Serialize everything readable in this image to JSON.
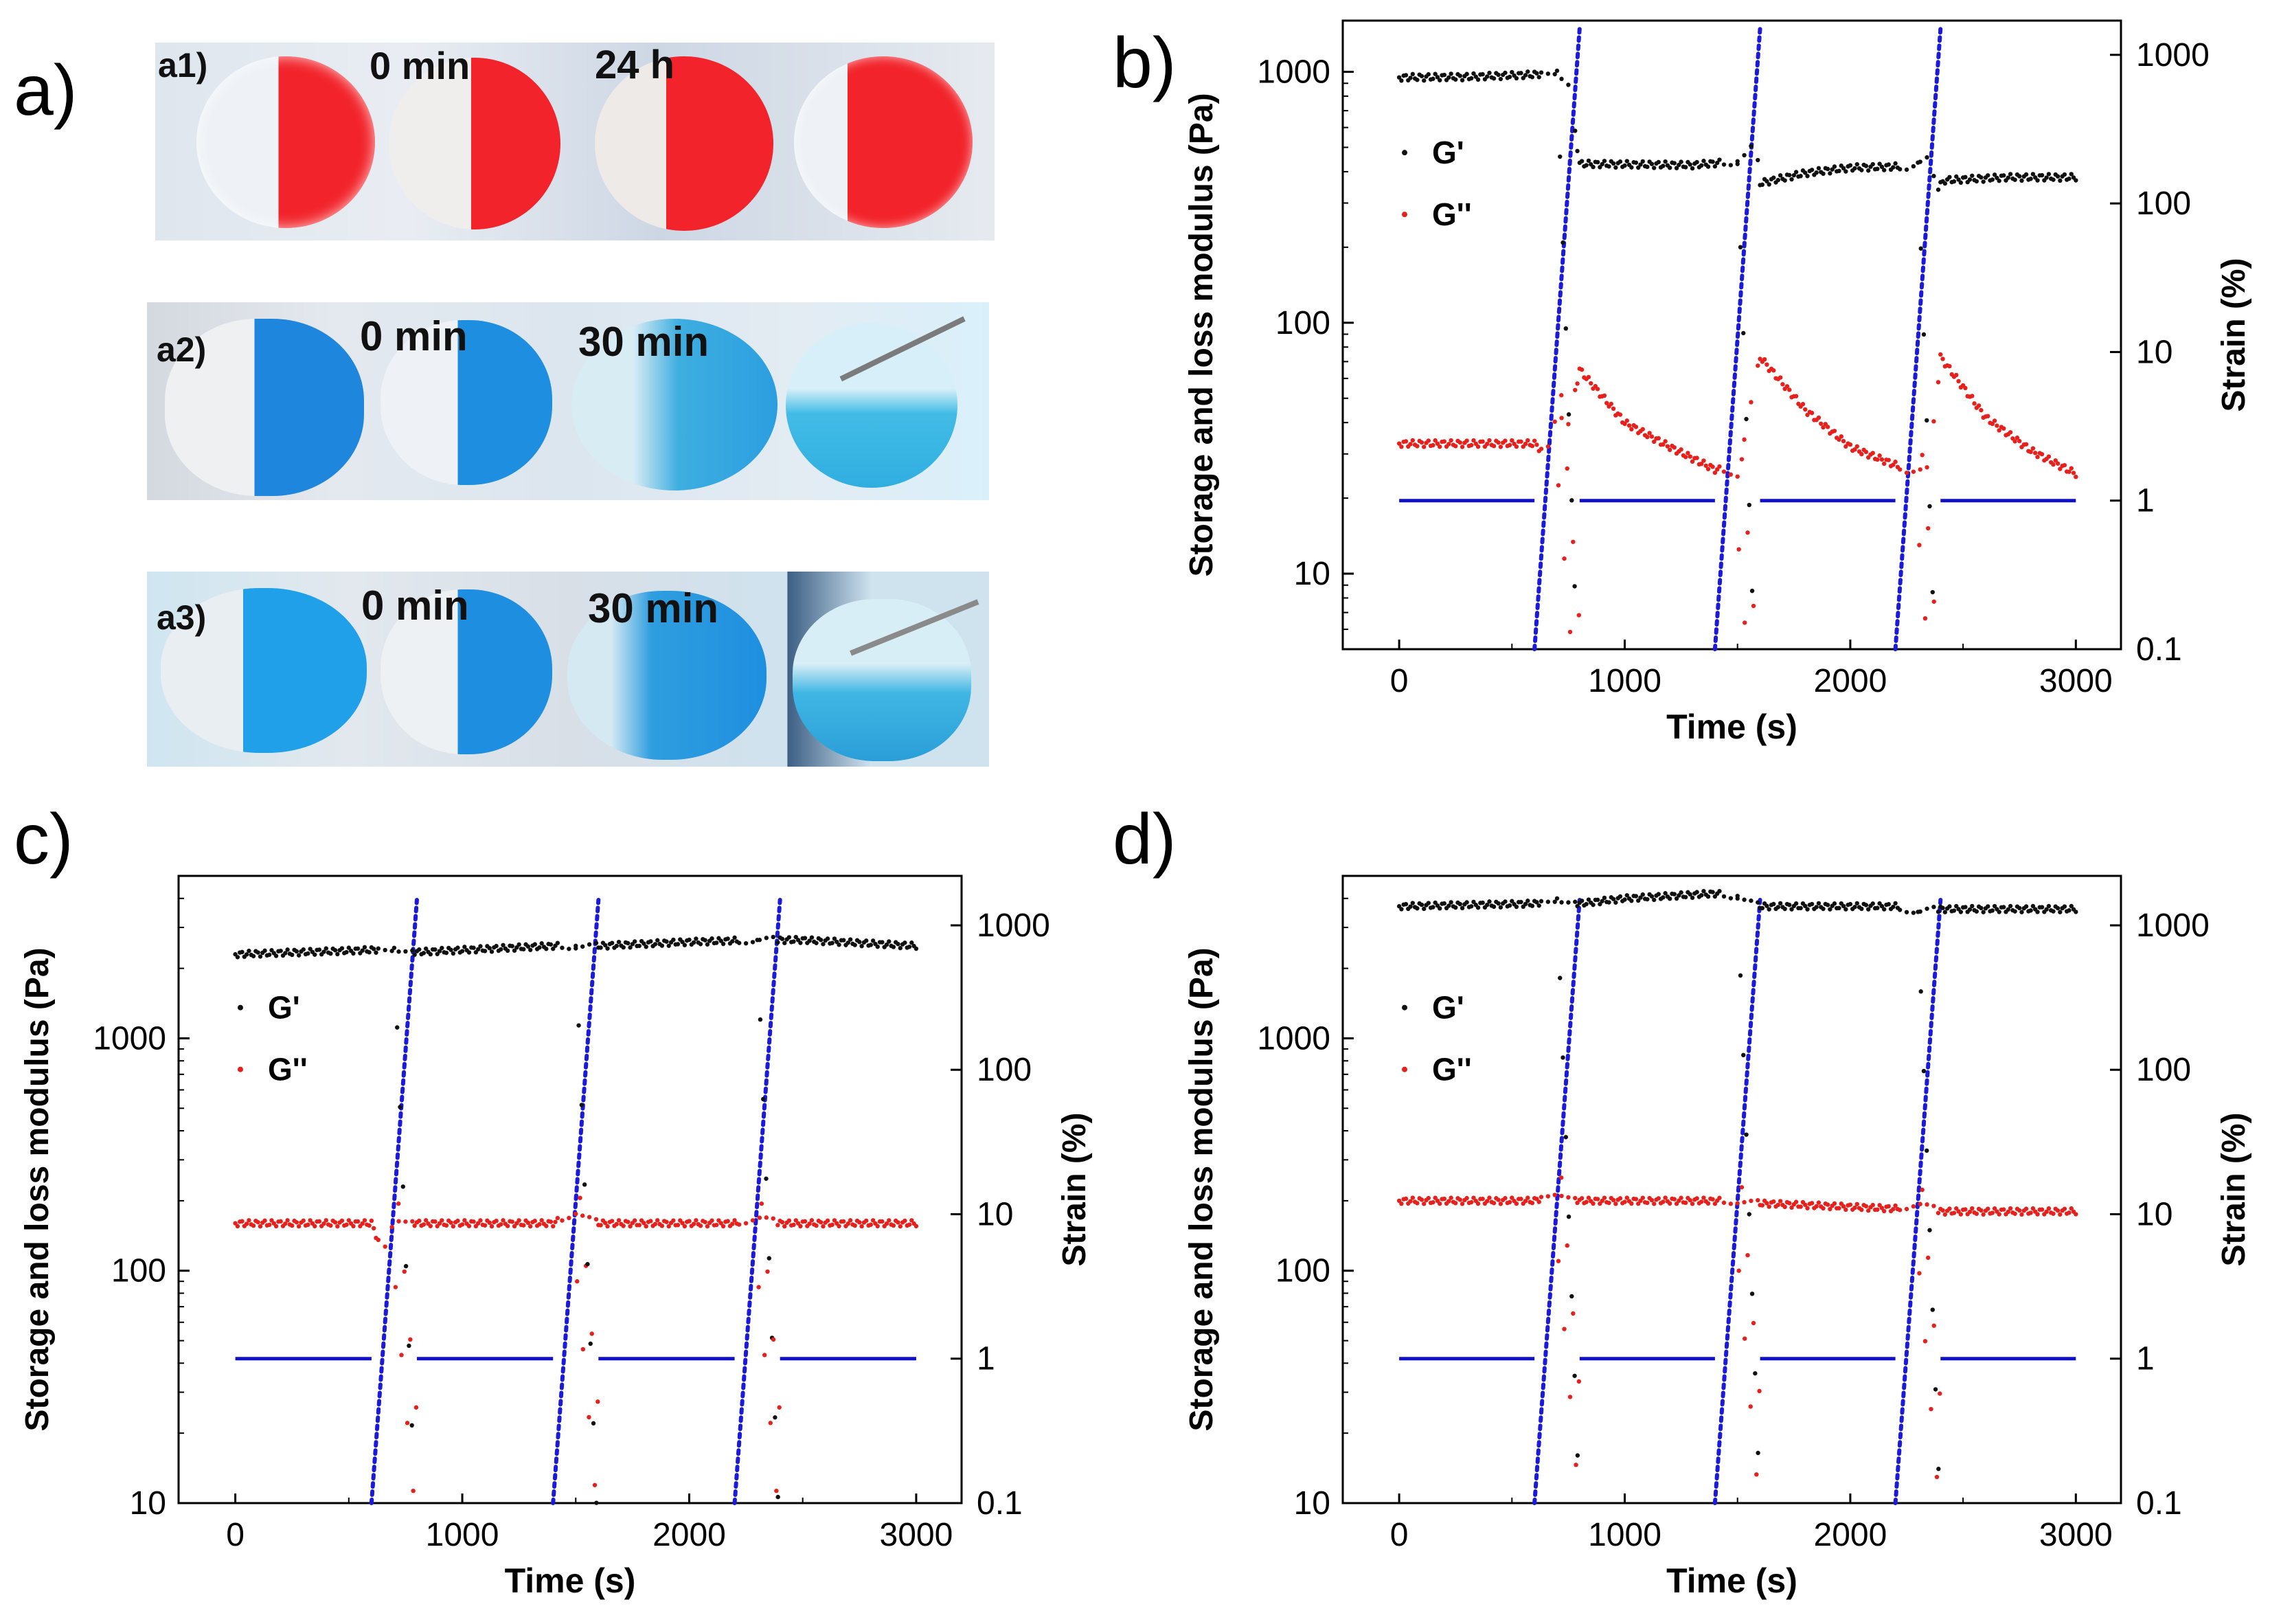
{
  "panel_labels": {
    "a": "a)",
    "b": "b)",
    "c": "c)",
    "d": "d)"
  },
  "photos": {
    "row1": {
      "label": "a1)",
      "t1": "0 min",
      "t2": "24 h"
    },
    "row2": {
      "label": "a2)",
      "t1": "0 min",
      "t2": "30 min"
    },
    "row3": {
      "label": "a3)",
      "t1": "0 min",
      "t2": "30 min"
    }
  },
  "colors": {
    "gprime": "#111111",
    "gdouble": "#e8201c",
    "strain_dot": "#1a1ad8",
    "strain_line": "#1010c8",
    "red_gel": "#f2232a",
    "blue_gel": "#1e8fe0"
  },
  "chart_data": [
    {
      "type": "scatter",
      "panel": "b",
      "xlabel": "Time (s)",
      "ylabel": "Storage and loss modulus (Pa)",
      "y2label": "Strain (%)",
      "xlim": [
        -250,
        3200
      ],
      "xticks": [
        0,
        1000,
        2000,
        3000
      ],
      "ylim": [
        5,
        1600
      ],
      "yticks": [
        10,
        100,
        1000
      ],
      "y2lim": [
        0.1,
        1700
      ],
      "y2ticks": [
        0.1,
        1,
        10,
        100,
        1000
      ],
      "legend": [
        "G'",
        "G''"
      ],
      "series": [
        {
          "name": "G'",
          "points": [
            [
              0,
              950
            ],
            [
              300,
              955
            ],
            [
              600,
              975
            ],
            [
              700,
              1010
            ],
            [
              750,
              900
            ],
            [
              800,
              430
            ],
            [
              1000,
              428
            ],
            [
              1300,
              425
            ],
            [
              1500,
              440
            ],
            [
              1580,
              520
            ],
            [
              1600,
              360
            ],
            [
              1800,
              395
            ],
            [
              2000,
              415
            ],
            [
              2250,
              420
            ],
            [
              2350,
              450
            ],
            [
              2380,
              340
            ],
            [
              2420,
              370
            ],
            [
              2700,
              380
            ],
            [
              3000,
              380
            ]
          ]
        },
        {
          "name": "G''",
          "points": [
            [
              0,
              33
            ],
            [
              300,
              33
            ],
            [
              600,
              33
            ],
            [
              650,
              30
            ],
            [
              700,
              45
            ],
            [
              750,
              40
            ],
            [
              800,
              65
            ],
            [
              1000,
              40
            ],
            [
              1200,
              32
            ],
            [
              1400,
              26
            ],
            [
              1450,
              26
            ],
            [
              1500,
              25
            ],
            [
              1600,
              73
            ],
            [
              1800,
              45
            ],
            [
              2000,
              32
            ],
            [
              2250,
              26
            ],
            [
              2350,
              26
            ],
            [
              2400,
              73
            ],
            [
              2600,
              42
            ],
            [
              2800,
              31
            ],
            [
              3000,
              25
            ]
          ]
        },
        {
          "name": "Strain",
          "points": [
            [
              0,
              1
            ],
            [
              600,
              1
            ],
            [
              800,
              1000
            ],
            [
              1400,
              1
            ],
            [
              1600,
              1000
            ],
            [
              2200,
              1
            ],
            [
              2400,
              1000
            ],
            [
              3000,
              1
            ]
          ]
        }
      ]
    },
    {
      "type": "scatter",
      "panel": "c",
      "xlabel": "Time (s)",
      "ylabel": "Storage and loss modulus (Pa)",
      "y2label": "Strain (%)",
      "xlim": [
        -250,
        3200
      ],
      "xticks": [
        0,
        1000,
        2000,
        3000
      ],
      "ylim": [
        10,
        5000
      ],
      "yticks": [
        10,
        100,
        1000
      ],
      "y2lim": [
        0.1,
        2200
      ],
      "y2ticks": [
        0.1,
        1,
        10,
        100,
        1000
      ],
      "legend": [
        "G'",
        "G''"
      ],
      "series": [
        {
          "name": "G'",
          "points": [
            [
              0,
              2300
            ],
            [
              600,
              2400
            ],
            [
              700,
              2450
            ],
            [
              800,
              2350
            ],
            [
              1000,
              2400
            ],
            [
              1400,
              2500
            ],
            [
              1600,
              2500
            ],
            [
              2000,
              2600
            ],
            [
              2300,
              2650
            ],
            [
              2500,
              2650
            ],
            [
              3000,
              2500
            ]
          ]
        },
        {
          "name": "G''",
          "points": [
            [
              0,
              160
            ],
            [
              600,
              160
            ],
            [
              650,
              120
            ],
            [
              700,
              170
            ],
            [
              800,
              160
            ],
            [
              1000,
              160
            ],
            [
              1400,
              160
            ],
            [
              1500,
              180
            ],
            [
              1600,
              160
            ],
            [
              2200,
              160
            ],
            [
              2300,
              170
            ],
            [
              2400,
              160
            ],
            [
              3000,
              160
            ]
          ]
        },
        {
          "name": "Strain",
          "points": [
            [
              0,
              1
            ],
            [
              600,
              1
            ],
            [
              800,
              1000
            ],
            [
              1400,
              1
            ],
            [
              1600,
              1000
            ],
            [
              2200,
              1
            ],
            [
              2400,
              1000
            ],
            [
              3000,
              1
            ]
          ]
        }
      ]
    },
    {
      "type": "scatter",
      "panel": "d",
      "xlabel": "Time (s)",
      "ylabel": "Storage and loss modulus (Pa)",
      "y2label": "Strain (%)",
      "xlim": [
        -250,
        3200
      ],
      "xticks": [
        0,
        1000,
        2000,
        3000
      ],
      "ylim": [
        10,
        5000
      ],
      "yticks": [
        10,
        100,
        1000
      ],
      "y2lim": [
        0.1,
        2200
      ],
      "y2ticks": [
        0.1,
        1,
        10,
        100,
        1000
      ],
      "legend": [
        "G'",
        "G''"
      ],
      "series": [
        {
          "name": "G'",
          "points": [
            [
              0,
              3700
            ],
            [
              600,
              3800
            ],
            [
              700,
              4000
            ],
            [
              800,
              3800
            ],
            [
              1000,
              4000
            ],
            [
              1400,
              4200
            ],
            [
              1500,
              4100
            ],
            [
              1600,
              3700
            ],
            [
              2200,
              3700
            ],
            [
              2300,
              3500
            ],
            [
              2400,
              3600
            ],
            [
              3000,
              3600
            ]
          ]
        },
        {
          "name": "G''",
          "points": [
            [
              0,
              200
            ],
            [
              600,
              200
            ],
            [
              700,
              220
            ],
            [
              800,
              200
            ],
            [
              1400,
              200
            ],
            [
              1500,
              200
            ],
            [
              1600,
              195
            ],
            [
              2200,
              185
            ],
            [
              2300,
              195
            ],
            [
              2400,
              180
            ],
            [
              3000,
              180
            ]
          ]
        },
        {
          "name": "Strain",
          "points": [
            [
              0,
              1
            ],
            [
              600,
              1
            ],
            [
              800,
              1000
            ],
            [
              1400,
              1
            ],
            [
              1600,
              1000
            ],
            [
              2200,
              1
            ],
            [
              2400,
              1000
            ],
            [
              3000,
              1
            ]
          ]
        }
      ]
    }
  ]
}
